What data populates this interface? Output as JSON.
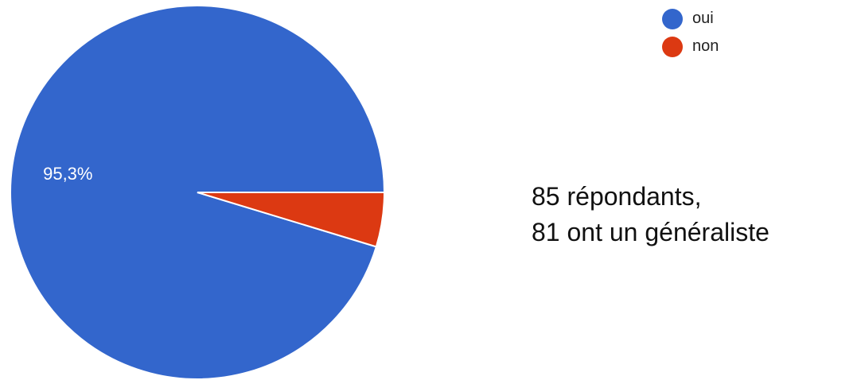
{
  "chart_data": {
    "type": "pie",
    "categories": [
      "oui",
      "non"
    ],
    "values": [
      95.3,
      4.7
    ],
    "colors": [
      "#3366cc",
      "#dc3912"
    ],
    "slice_labels": [
      "95,3%",
      ""
    ],
    "legend": {
      "placement": "top-right",
      "entries": [
        "oui",
        "non"
      ]
    }
  },
  "annotation": {
    "line1": "85 répondants,",
    "line2": "81 ont un généraliste"
  }
}
